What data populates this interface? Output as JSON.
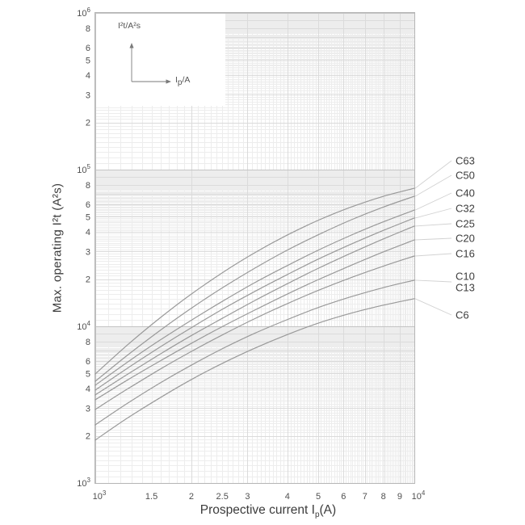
{
  "chart_data": {
    "type": "line",
    "title": "",
    "xlabel_parts": {
      "pre": "Prospective current I",
      "sub": "p",
      "post": "(A)"
    },
    "ylabel": "Max. operating I²t (A²s)",
    "x_scale": "log",
    "y_scale": "log",
    "x_range": [
      1000,
      10000
    ],
    "y_range": [
      1000,
      1000000
    ],
    "grid": "fine log-log mesh",
    "legend_position": "right-outside",
    "inset": {
      "ylabel": "I²t/A²s",
      "xlabel_parts": {
        "pre": "I",
        "sub": "p",
        "post": "/A"
      }
    },
    "x_ticks": [
      {
        "v": 1000,
        "label": "10^3",
        "major": true
      },
      {
        "v": 1500,
        "label": "1.5"
      },
      {
        "v": 2000,
        "label": "2"
      },
      {
        "v": 2500,
        "label": "2.5"
      },
      {
        "v": 3000,
        "label": "3"
      },
      {
        "v": 4000,
        "label": "4"
      },
      {
        "v": 5000,
        "label": "5"
      },
      {
        "v": 6000,
        "label": "6"
      },
      {
        "v": 7000,
        "label": "7"
      },
      {
        "v": 8000,
        "label": "8"
      },
      {
        "v": 9000,
        "label": "9"
      },
      {
        "v": 10000,
        "label": "10^4",
        "major": true
      }
    ],
    "y_ticks": [
      {
        "v": 1000,
        "label": "10^3",
        "major": true
      },
      {
        "v": 2000,
        "label": "2"
      },
      {
        "v": 3000,
        "label": "3"
      },
      {
        "v": 4000,
        "label": "4"
      },
      {
        "v": 5000,
        "label": "5"
      },
      {
        "v": 6000,
        "label": "6"
      },
      {
        "v": 8000,
        "label": "8"
      },
      {
        "v": 10000,
        "label": "10^4",
        "major": true
      },
      {
        "v": 20000,
        "label": "2"
      },
      {
        "v": 30000,
        "label": "3"
      },
      {
        "v": 40000,
        "label": "4"
      },
      {
        "v": 50000,
        "label": "5"
      },
      {
        "v": 60000,
        "label": "6"
      },
      {
        "v": 80000,
        "label": "8"
      },
      {
        "v": 100000,
        "label": "10^5",
        "major": true
      },
      {
        "v": 200000,
        "label": "2"
      },
      {
        "v": 300000,
        "label": "3"
      },
      {
        "v": 400000,
        "label": "4"
      },
      {
        "v": 500000,
        "label": "5"
      },
      {
        "v": 600000,
        "label": "6"
      },
      {
        "v": 800000,
        "label": "8"
      },
      {
        "v": 1000000,
        "label": "10^6",
        "major": true
      }
    ],
    "series": [
      {
        "labels": [
          "C63"
        ],
        "points": [
          [
            1000,
            4970
          ],
          [
            1259,
            7580
          ],
          [
            1585,
            11200
          ],
          [
            1995,
            16000
          ],
          [
            2512,
            22100
          ],
          [
            3162,
            29500
          ],
          [
            3981,
            38100
          ],
          [
            5012,
            47600
          ],
          [
            6310,
            57500
          ],
          [
            7943,
            67300
          ],
          [
            10000,
            76000
          ]
        ]
      },
      {
        "labels": [
          "C50"
        ],
        "points": [
          [
            1000,
            4460
          ],
          [
            1259,
            6520
          ],
          [
            1585,
            9310
          ],
          [
            1995,
            13000
          ],
          [
            2512,
            17700
          ],
          [
            3162,
            23500
          ],
          [
            3981,
            30500
          ],
          [
            5012,
            38500
          ],
          [
            6310,
            47600
          ],
          [
            7943,
            57400
          ],
          [
            10000,
            67600
          ]
        ]
      },
      {
        "labels": [
          "C40"
        ],
        "points": [
          [
            1000,
            4210
          ],
          [
            1259,
            5890
          ],
          [
            1585,
            8100
          ],
          [
            1995,
            10900
          ],
          [
            2512,
            14500
          ],
          [
            3162,
            19000
          ],
          [
            3981,
            24300
          ],
          [
            5012,
            30700
          ],
          [
            6310,
            38000
          ],
          [
            7943,
            46200
          ],
          [
            10000,
            55200
          ]
        ]
      },
      {
        "labels": [
          "C32"
        ],
        "points": [
          [
            1000,
            3920
          ],
          [
            1259,
            5390
          ],
          [
            1585,
            7310
          ],
          [
            1995,
            9770
          ],
          [
            2512,
            12900
          ],
          [
            3162,
            16700
          ],
          [
            3981,
            21300
          ],
          [
            5012,
            26900
          ],
          [
            6310,
            33300
          ],
          [
            7943,
            40700
          ],
          [
            10000,
            49100
          ]
        ]
      },
      {
        "labels": [
          "C25"
        ],
        "points": [
          [
            1000,
            3650
          ],
          [
            1259,
            4930
          ],
          [
            1585,
            6590
          ],
          [
            1995,
            8700
          ],
          [
            2512,
            11300
          ],
          [
            3162,
            14600
          ],
          [
            3981,
            18600
          ],
          [
            5012,
            23500
          ],
          [
            6310,
            29200
          ],
          [
            7943,
            35900
          ],
          [
            10000,
            43600
          ]
        ]
      },
      {
        "labels": [
          "C20"
        ],
        "points": [
          [
            1000,
            3400
          ],
          [
            1259,
            4530
          ],
          [
            1585,
            5960
          ],
          [
            1995,
            7770
          ],
          [
            2512,
            10000
          ],
          [
            3162,
            12700
          ],
          [
            3981,
            16000
          ],
          [
            5012,
            19900
          ],
          [
            6310,
            24400
          ],
          [
            7943,
            29700
          ],
          [
            10000,
            35600
          ]
        ]
      },
      {
        "labels": [
          "C16"
        ],
        "points": [
          [
            1000,
            2950
          ],
          [
            1259,
            3970
          ],
          [
            1585,
            5280
          ],
          [
            1995,
            6890
          ],
          [
            2512,
            8850
          ],
          [
            3162,
            11200
          ],
          [
            3981,
            13900
          ],
          [
            5012,
            17000
          ],
          [
            6310,
            20400
          ],
          [
            7943,
            24100
          ],
          [
            10000,
            28100
          ]
        ]
      },
      {
        "labels": [
          "C10",
          "C13"
        ],
        "points": [
          [
            1000,
            2350
          ],
          [
            1259,
            3220
          ],
          [
            1585,
            4310
          ],
          [
            1995,
            5640
          ],
          [
            2512,
            7220
          ],
          [
            3162,
            9030
          ],
          [
            3981,
            11000
          ],
          [
            5012,
            13200
          ],
          [
            6310,
            15400
          ],
          [
            7943,
            17600
          ],
          [
            10000,
            19700
          ]
        ]
      },
      {
        "labels": [
          "C6"
        ],
        "points": [
          [
            1000,
            1880
          ],
          [
            1259,
            2590
          ],
          [
            1585,
            3470
          ],
          [
            1995,
            4560
          ],
          [
            2512,
            5820
          ],
          [
            3162,
            7250
          ],
          [
            3981,
            8820
          ],
          [
            5012,
            10500
          ],
          [
            6310,
            12100
          ],
          [
            7943,
            13600
          ],
          [
            10000,
            15000
          ]
        ]
      }
    ],
    "colors": {
      "curve": "#999999",
      "grid_minor": "#ededed",
      "grid_sub": "#dbdbdb",
      "grid_major": "#c4c4c4",
      "border": "#b5b5b5",
      "tick_text": "#4f4f4f",
      "curve_label_text": "#3c3c3c",
      "leader": "#d2d2d2",
      "inset_axes": "#7a7a7a"
    }
  }
}
